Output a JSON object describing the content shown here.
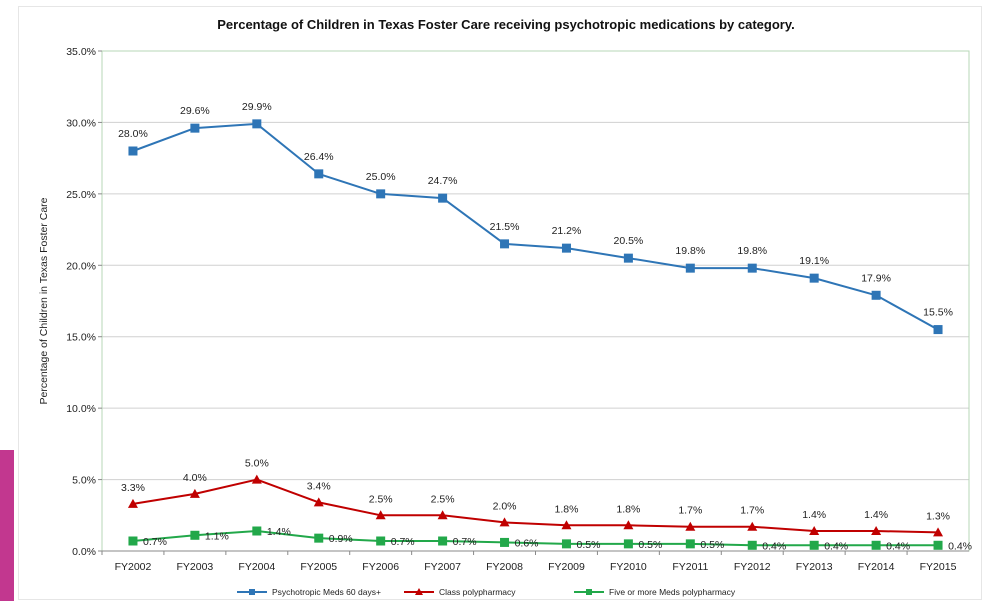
{
  "chart_data": {
    "type": "line",
    "title": "Percentage of Children in Texas Foster Care receiving psychotropic medications by category.",
    "ylabel": "Percentage of Children in Texas Foster Care",
    "xlabel": "",
    "ylim": [
      0,
      35
    ],
    "y_ticks": [
      "0.0%",
      "5.0%",
      "10.0%",
      "15.0%",
      "20.0%",
      "25.0%",
      "30.0%",
      "35.0%"
    ],
    "categories": [
      "FY2002",
      "FY2003",
      "FY2004",
      "FY2005",
      "FY2006",
      "FY2007",
      "FY2008",
      "FY2009",
      "FY2010",
      "FY2011",
      "FY2012",
      "FY2013",
      "FY2014",
      "FY2015"
    ],
    "grid": "horizontal",
    "legend_position": "bottom",
    "series": [
      {
        "name": "Psychotropic Meds 60 days+",
        "color": "#2e75b6",
        "marker": "square",
        "values": [
          28.0,
          29.6,
          29.9,
          26.4,
          25.0,
          24.7,
          21.5,
          21.2,
          20.5,
          19.8,
          19.8,
          19.1,
          17.9,
          15.5
        ],
        "labels": [
          "28.0%",
          "29.6%",
          "29.9%",
          "26.4%",
          "25.0%",
          "24.7%",
          "21.5%",
          "21.2%",
          "20.5%",
          "19.8%",
          "19.8%",
          "19.1%",
          "17.9%",
          "15.5%"
        ]
      },
      {
        "name": "Class polypharmacy",
        "color": "#c00000",
        "marker": "triangle",
        "values": [
          3.3,
          4.0,
          5.0,
          3.4,
          2.5,
          2.5,
          2.0,
          1.8,
          1.8,
          1.7,
          1.7,
          1.4,
          1.4,
          1.3
        ],
        "labels": [
          "3.3%",
          "4.0%",
          "5.0%",
          "3.4%",
          "2.5%",
          "2.5%",
          "2.0%",
          "1.8%",
          "1.8%",
          "1.7%",
          "1.7%",
          "1.4%",
          "1.4%",
          "1.3%"
        ]
      },
      {
        "name": "Five or more Meds polypharmacy",
        "color": "#22a84a",
        "marker": "square",
        "values": [
          0.7,
          1.1,
          1.4,
          0.9,
          0.7,
          0.7,
          0.6,
          0.5,
          0.5,
          0.5,
          0.4,
          0.4,
          0.4,
          0.4
        ],
        "labels": [
          "0.7%",
          "1.1%",
          "1.4%",
          "0.9%",
          "0.7%",
          "0.7%",
          "0.6%",
          "0.5%",
          "0.5%",
          "0.5%",
          "0.4%",
          "0.4%",
          "0.4%",
          "0.4%"
        ]
      }
    ]
  }
}
